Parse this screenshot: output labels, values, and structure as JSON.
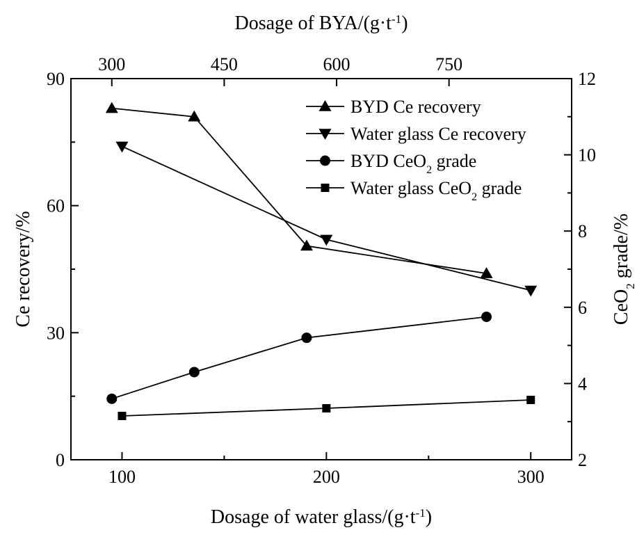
{
  "chart_data": {
    "type": "line",
    "axes": {
      "bottom": {
        "label_parts": [
          {
            "text": "Dosage of water glass/(g·t"
          },
          {
            "text": "-1",
            "sup": true
          },
          {
            "text": ")"
          }
        ],
        "range": [
          75,
          320
        ],
        "ticks": [
          100,
          200,
          300
        ],
        "minor_ticks": [
          150,
          250
        ]
      },
      "top": {
        "label_parts": [
          {
            "text": "Dosage of BYA/(g·t"
          },
          {
            "text": "-1",
            "sup": true
          },
          {
            "text": ")"
          }
        ],
        "ticks": [
          300,
          450,
          600,
          750
        ],
        "tick_positions_bottom_units": [
          95,
          150,
          205,
          260
        ]
      },
      "left": {
        "label_parts": [
          {
            "text": "Ce recovery/%"
          }
        ],
        "range": [
          0,
          90
        ],
        "ticks": [
          0,
          30,
          60,
          90
        ],
        "minor_ticks": [
          15,
          45,
          75
        ]
      },
      "right": {
        "label_parts": [
          {
            "text": "CeO"
          },
          {
            "text": "2",
            "sub": true
          },
          {
            "text": " grade/%"
          }
        ],
        "range": [
          2,
          12
        ],
        "ticks": [
          2,
          4,
          6,
          8,
          10,
          12
        ],
        "minor_ticks": [
          3,
          5,
          7,
          9,
          11
        ]
      }
    },
    "series": [
      {
        "name_parts": [
          {
            "text": "BYD Ce recovery"
          }
        ],
        "marker": "triangle-up",
        "axis": "left",
        "x_top": [
          300,
          410,
          560,
          800
        ],
        "y": [
          83,
          81,
          50.5,
          44
        ]
      },
      {
        "name_parts": [
          {
            "text": "Water glass Ce recovery"
          }
        ],
        "marker": "triangle-down",
        "axis": "left",
        "x": [
          100,
          200,
          300
        ],
        "y": [
          74,
          52,
          40
        ]
      },
      {
        "name_parts": [
          {
            "text": "BYD CeO"
          },
          {
            "text": "2",
            "sub": true
          },
          {
            "text": " grade"
          }
        ],
        "marker": "circle",
        "axis": "right",
        "x_top": [
          300,
          410,
          560,
          800
        ],
        "y": [
          3.6,
          4.3,
          5.2,
          5.75
        ]
      },
      {
        "name_parts": [
          {
            "text": "Water glass CeO"
          },
          {
            "text": "2",
            "sub": true
          },
          {
            "text": " grade"
          }
        ],
        "marker": "square",
        "axis": "right",
        "x": [
          100,
          200,
          300
        ],
        "y": [
          3.15,
          3.35,
          3.57
        ]
      }
    ],
    "legend": "top-right",
    "grid": false
  }
}
